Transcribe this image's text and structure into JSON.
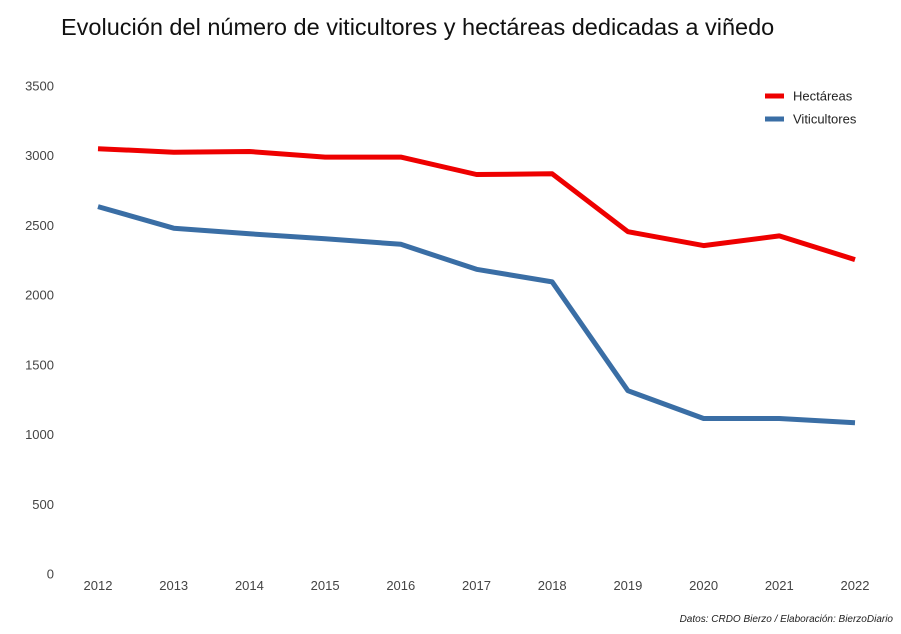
{
  "chart_data": {
    "type": "line",
    "title": "Evolución del número de viticultores y hectáreas dedicadas a viñedo",
    "source": "Datos: CRDO Bierzo / Elaboración: BierzoDiario",
    "x": [
      "2012",
      "2013",
      "2014",
      "2015",
      "2016",
      "2017",
      "2018",
      "2019",
      "2020",
      "2021",
      "2022"
    ],
    "ylim": [
      0,
      3500
    ],
    "yticks": [
      "0",
      "500",
      "1000",
      "1500",
      "2000",
      "2500",
      "3000",
      "3500"
    ],
    "grid": false,
    "legend_position": "top-right",
    "series": [
      {
        "name": "Hectáreas",
        "color": "#ee0000",
        "values": [
          3050,
          3025,
          3030,
          2990,
          2990,
          2865,
          2870,
          2455,
          2355,
          2425,
          2255
        ]
      },
      {
        "name": "Viticultores",
        "color": "#3a6ea5",
        "values": [
          2635,
          2480,
          2440,
          2405,
          2365,
          2185,
          2095,
          1315,
          1115,
          1115,
          1085
        ]
      }
    ]
  }
}
